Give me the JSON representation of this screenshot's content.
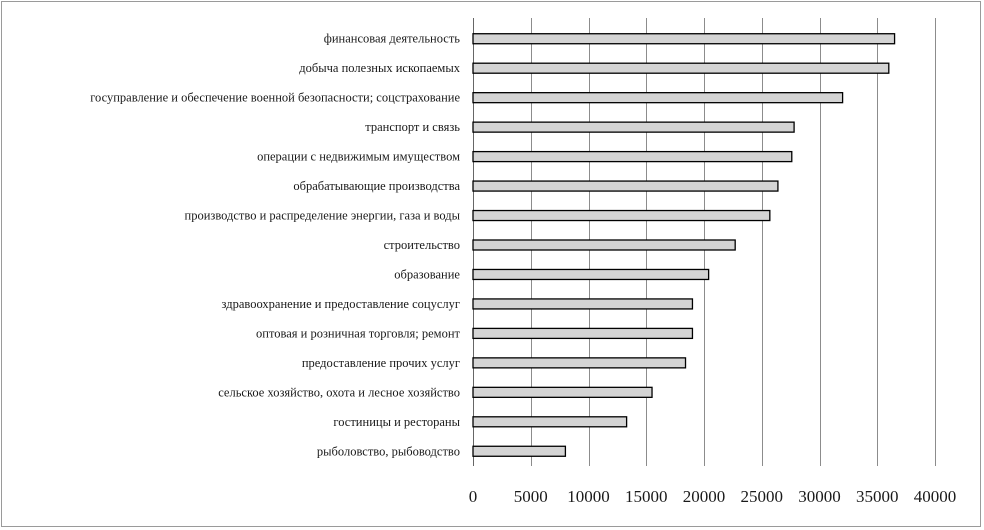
{
  "chart_data": {
    "type": "bar",
    "orientation": "horizontal",
    "title": "",
    "xlabel": "",
    "ylabel": "",
    "categories": [
      "финансовая деятельность",
      "добыча полезных ископаемых",
      "госуправление и обеспечение военной безопасности; соцстрахование",
      "транспорт и связь",
      "операции с недвижимым имуществом",
      "обрабатывающие производства",
      "производство и распределение энергии, газа и воды",
      "строительство",
      "образование",
      "здравоохранение и предоставление соцуслуг",
      "оптовая и розничная торговля; ремонт",
      "предоставление прочих услуг",
      "сельское хозяйство, охота и лесное хозяйство",
      "гостиницы и рестораны",
      "рыболовство, рыбоводство"
    ],
    "values": [
      36500,
      36000,
      32000,
      27800,
      27600,
      26400,
      25700,
      22700,
      20400,
      19000,
      19000,
      18400,
      15500,
      13300,
      8000
    ],
    "xlim": [
      0,
      40000
    ],
    "ticks": [
      0,
      5000,
      10000,
      15000,
      20000,
      25000,
      30000,
      35000,
      40000
    ],
    "tick_labels": [
      "0",
      "5000",
      "10000",
      "15000",
      "20000",
      "25000",
      "30000",
      "35000",
      "40000"
    ],
    "grid": "vertical",
    "legend": "none",
    "colors": {
      "bar_fill": "#d4d4d4",
      "bar_stroke": "#000000",
      "grid": "#8c8c8c",
      "frame": "#9a9a9a"
    }
  }
}
